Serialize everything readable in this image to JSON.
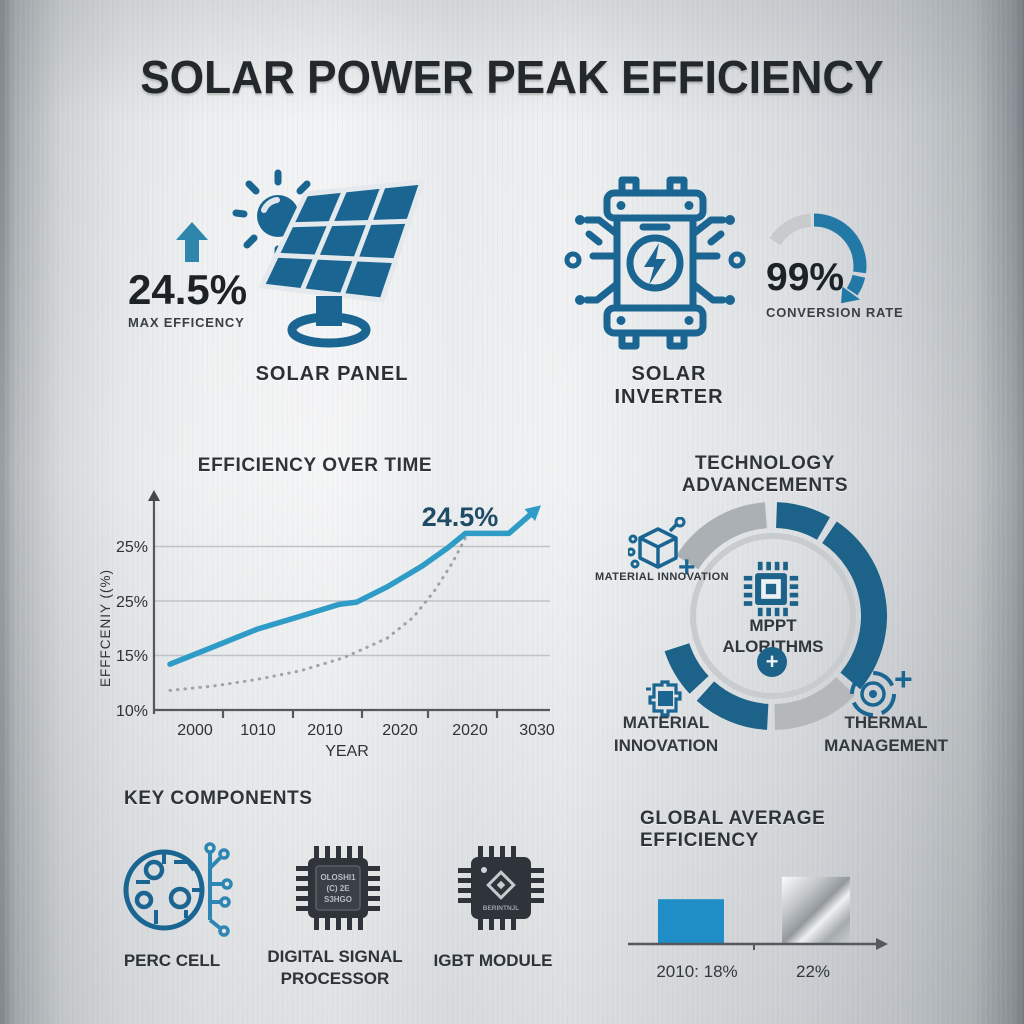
{
  "title": "SOLAR POWER PEAK EFFICIENCY",
  "colors": {
    "icon_blue": "#1a6591",
    "donut_blue": "#1d6288",
    "chart_line_blue": "#2f9cc7",
    "bar_blue": "#1f8dc6",
    "gray_segment": "#b4b8bb",
    "light_gray_segment": "#abb0b4",
    "annotation_navy": "#1e4b66"
  },
  "panel_stat": {
    "value": "24.5%",
    "label": "MAX EFFICENCY",
    "caption": "SOLAR PANEL"
  },
  "inverter_stat": {
    "value": "99%",
    "label": "CONVERSION RATE",
    "caption": "SOLAR INVERTER"
  },
  "line_chart": {
    "title": "EFFICIENCY OVER TIME",
    "ylabel": "EFFFCENIY ((%)",
    "xlabel": "YEAR",
    "annotation": "24.5%",
    "ytick_labels": [
      "25%",
      "25%",
      "15%",
      "10%"
    ],
    "xtick_labels": [
      "2000",
      "1010",
      "2010",
      "2020",
      "2020",
      "3030"
    ]
  },
  "donut": {
    "title": "TECHNOLOGY ADVANCEMENTS",
    "center_line1": "MPPT",
    "center_line2": "ALORITHMS",
    "plus": "+",
    "label_top": "MATERIAL INNOVATION",
    "label_bottom_left1": "MATERIAL",
    "label_bottom_left2": "INNOVATION",
    "label_bottom_right1": "THERMAL",
    "label_bottom_right2": "MANAGEMENT"
  },
  "components": {
    "heading": "KEY COMPONENTS",
    "perc_label": "PERC CELL",
    "dsp_label1": "DIGITAL SIGNAL",
    "dsp_label2": "PROCESSOR",
    "dsp_chip_text1": "OLOSHI1",
    "dsp_chip_text2": "(C) 2E",
    "dsp_chip_text3": "S3HGO",
    "igbt_label": "IGBT MODULE",
    "igbt_chip_text": "BERINTNJL"
  },
  "bar_section": {
    "heading": "GLOBAL AVERAGE EFFICIENCY",
    "labels": [
      "2010: 18%",
      "22%"
    ]
  },
  "chart_data": [
    {
      "type": "line",
      "title": "EFFICIENCY OVER TIME",
      "xlabel": "YEAR",
      "ylabel": "EFFFCENIY ((%)",
      "x_tick_labels": [
        "2000",
        "1010",
        "2010",
        "2020",
        "2020",
        "3030"
      ],
      "y_tick_labels": [
        "25%",
        "25%",
        "15%",
        "10%"
      ],
      "ylim": [
        10,
        28.5
      ],
      "grid": true,
      "annotation": "24.5%",
      "series": [
        {
          "name": "solar-panel-efficiency",
          "style": "solid",
          "color": "#2f9cc7",
          "points": [
            [
              0,
              14.2
            ],
            [
              1,
              15.8
            ],
            [
              2,
              17.4
            ],
            [
              3,
              18.6
            ],
            [
              3.9,
              19.7
            ],
            [
              4.3,
              19.9
            ],
            [
              5,
              21.3
            ],
            [
              5.8,
              23.2
            ],
            [
              6.4,
              24.9
            ],
            [
              6.8,
              26.2
            ],
            [
              7.8,
              26.2
            ],
            [
              8.4,
              28.3
            ]
          ]
        },
        {
          "name": "projection-dotted",
          "style": "dotted",
          "color": "#9fa3a6",
          "points": [
            [
              0,
              11.8
            ],
            [
              1,
              12.2
            ],
            [
              2,
              12.8
            ],
            [
              3,
              13.6
            ],
            [
              4,
              14.8
            ],
            [
              5,
              16.6
            ],
            [
              5.6,
              18.5
            ],
            [
              6.1,
              21.0
            ],
            [
              6.5,
              23.5
            ],
            [
              6.8,
              25.8
            ]
          ]
        }
      ]
    },
    {
      "type": "donut-ring",
      "title": "TECHNOLOGY ADVANCEMENTS",
      "segments": [
        {
          "from": 2,
          "to": 30,
          "color": "#1d6288"
        },
        {
          "from": 34,
          "to": 130,
          "color": "#1d6288"
        },
        {
          "from": 134,
          "to": 179,
          "color": "#b4b8bb"
        },
        {
          "from": 183,
          "to": 222,
          "color": "#1d6288"
        },
        {
          "from": 227,
          "to": 252,
          "color": "#1d6288"
        },
        {
          "from": 302,
          "to": 356,
          "color": "#abb0b4"
        }
      ]
    },
    {
      "type": "gauge",
      "value_label": "99%",
      "segments": [
        {
          "from": -58,
          "to": -4,
          "color": "#c8cbcd"
        },
        {
          "from": 0,
          "to": 98,
          "color": "#2379a6"
        },
        {
          "from": 103,
          "to": 124,
          "color": "#2379a6"
        }
      ]
    },
    {
      "type": "bar",
      "title": "GLOBAL AVERAGE EFFICIENCY",
      "categories": [
        "2010: 18%",
        "22%"
      ],
      "values": [
        18,
        22
      ],
      "baseline": 10,
      "bar_colors": [
        "#1f8dc6",
        "silver-gradient"
      ]
    }
  ]
}
